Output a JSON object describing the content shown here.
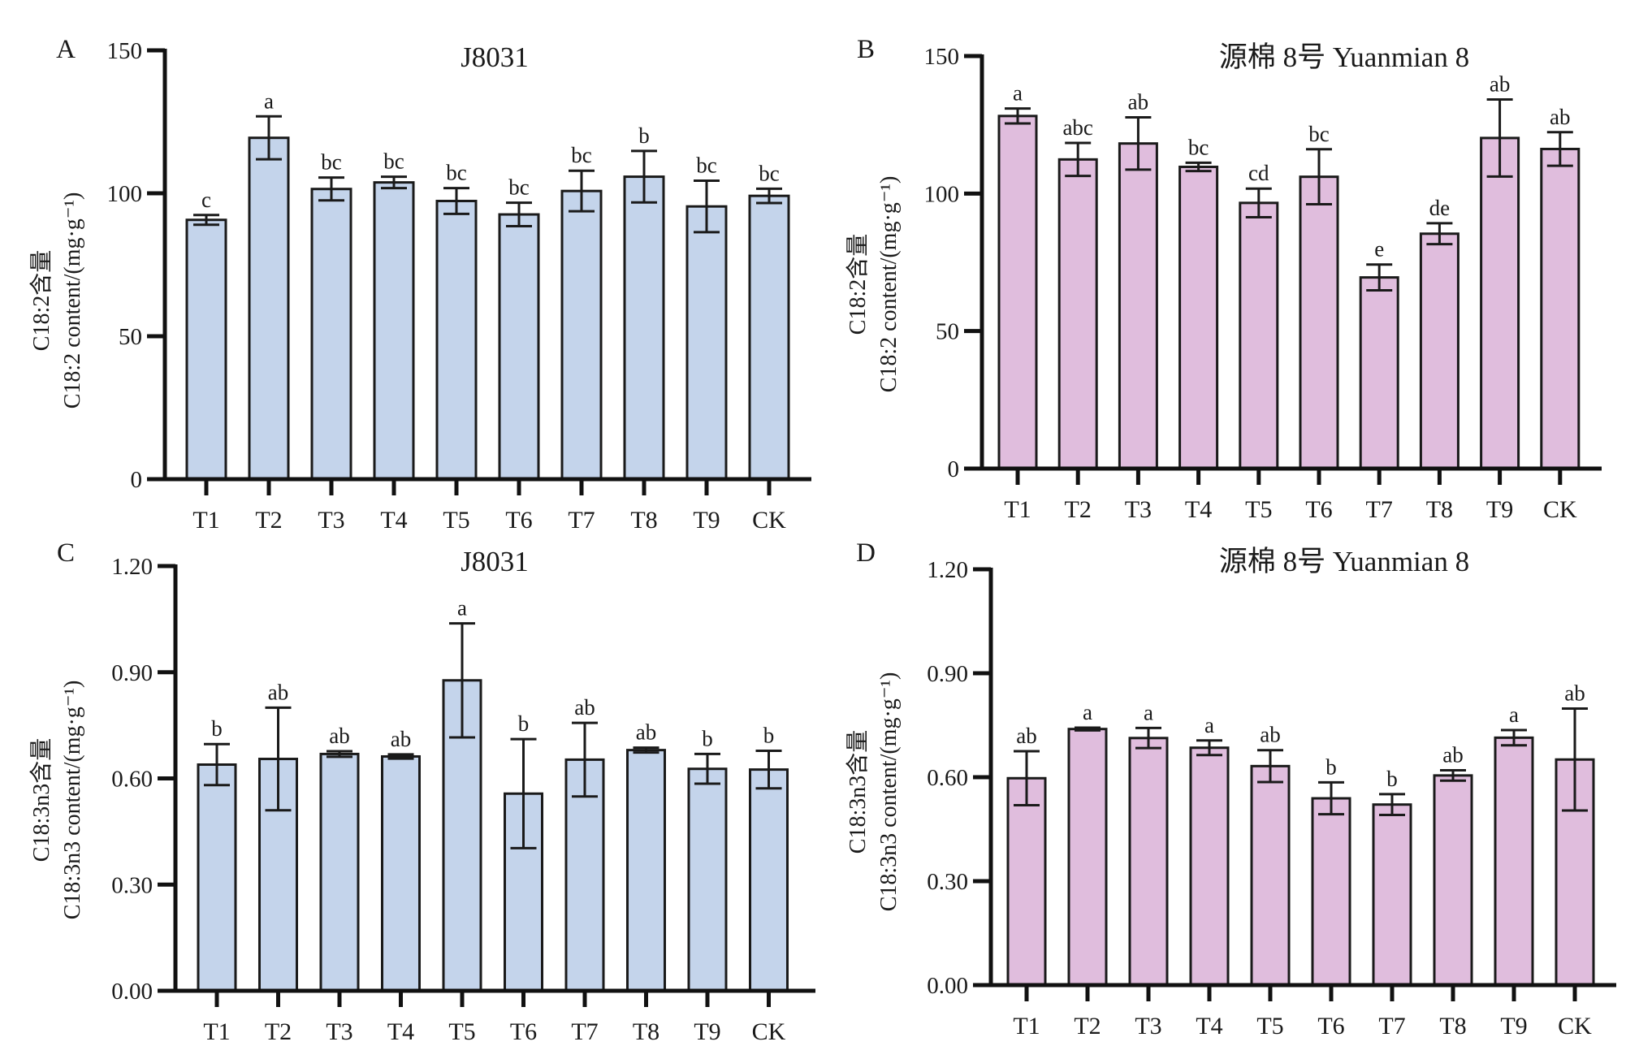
{
  "chart_data": [
    {
      "panel": "A",
      "type": "bar",
      "title": "J8031",
      "ylabel_cn": "C18:2含量",
      "ylabel_en": "C18:2 content/(mg·g⁻¹)",
      "xlabel": "",
      "categories": [
        "T1",
        "T2",
        "T3",
        "T4",
        "T5",
        "T6",
        "T7",
        "T8",
        "T9",
        "CK"
      ],
      "values": [
        90.7,
        119.4,
        101.5,
        103.8,
        97.3,
        92.6,
        100.8,
        105.8,
        95.4,
        99.1
      ],
      "error": [
        1.7,
        7.5,
        4.0,
        2.0,
        4.5,
        4.1,
        7.1,
        9.0,
        9.0,
        2.5
      ],
      "significance": [
        "c",
        "a",
        "bc",
        "bc",
        "bc",
        "bc",
        "bc",
        "b",
        "bc",
        "bc"
      ],
      "ylim": [
        0,
        150
      ],
      "yticks": [
        0,
        50,
        100,
        150
      ],
      "ytick_labels": [
        "0",
        "50",
        "100",
        "150"
      ],
      "bar_color": "#c4d4eb",
      "grid": false
    },
    {
      "panel": "B",
      "type": "bar",
      "title": "源棉 8号 Yuanmian 8",
      "ylabel_cn": "C18:2含量",
      "ylabel_en": "C18:2 content/(mg·g⁻¹)",
      "xlabel": "",
      "categories": [
        "T1",
        "T2",
        "T3",
        "T4",
        "T5",
        "T6",
        "T7",
        "T8",
        "T9",
        "CK"
      ],
      "values": [
        128.2,
        112.4,
        118.2,
        109.7,
        96.6,
        106.1,
        69.5,
        85.4,
        120.2,
        116.2
      ],
      "error": [
        2.7,
        6.0,
        9.5,
        1.5,
        5.2,
        10.0,
        4.7,
        3.8,
        14.0,
        6.1
      ],
      "significance": [
        "a",
        "abc",
        "ab",
        "bc",
        "cd",
        "bc",
        "e",
        "de",
        "ab",
        "ab"
      ],
      "ylim": [
        0,
        150
      ],
      "yticks": [
        0,
        50,
        100,
        150
      ],
      "ytick_labels": [
        "0",
        "50",
        "100",
        "150"
      ],
      "bar_color": "#e0bddd",
      "grid": false
    },
    {
      "panel": "C",
      "type": "bar",
      "title": "J8031",
      "ylabel_cn": "C18:3n3含量",
      "ylabel_en": "C18:3n3 content/(mg·g⁻¹)",
      "xlabel": "",
      "categories": [
        "T1",
        "T2",
        "T3",
        "T4",
        "T5",
        "T6",
        "T7",
        "T8",
        "T9",
        "CK"
      ],
      "values": [
        0.639,
        0.655,
        0.669,
        0.662,
        0.877,
        0.557,
        0.653,
        0.68,
        0.627,
        0.625
      ],
      "error": [
        0.058,
        0.145,
        0.008,
        0.006,
        0.161,
        0.154,
        0.104,
        0.007,
        0.042,
        0.053
      ],
      "significance": [
        "b",
        "ab",
        "ab",
        "ab",
        "a",
        "b",
        "ab",
        "ab",
        "b",
        "b"
      ],
      "ylim": [
        0,
        1.2
      ],
      "yticks": [
        0,
        0.3,
        0.6,
        0.9,
        1.2
      ],
      "ytick_labels": [
        "0.00",
        "0.30",
        "0.60",
        "0.90",
        "1.20"
      ],
      "bar_color": "#c4d4eb",
      "grid": false
    },
    {
      "panel": "D",
      "type": "bar",
      "title": "源棉 8号 Yuanmian 8",
      "ylabel_cn": "C18:3n3含量",
      "ylabel_en": "C18:3n3 content/(mg·g⁻¹)",
      "xlabel": "",
      "categories": [
        "T1",
        "T2",
        "T3",
        "T4",
        "T5",
        "T6",
        "T7",
        "T8",
        "T9",
        "CK"
      ],
      "values": [
        0.597,
        0.739,
        0.713,
        0.685,
        0.632,
        0.539,
        0.521,
        0.605,
        0.714,
        0.651
      ],
      "error": [
        0.078,
        0.004,
        0.029,
        0.021,
        0.046,
        0.046,
        0.03,
        0.015,
        0.022,
        0.147
      ],
      "significance": [
        "ab",
        "a",
        "a",
        "a",
        "ab",
        "b",
        "b",
        "ab",
        "a",
        "ab"
      ],
      "ylim": [
        0,
        1.2
      ],
      "yticks": [
        0,
        0.3,
        0.6,
        0.9,
        1.2
      ],
      "ytick_labels": [
        "0.00",
        "0.30",
        "0.60",
        "0.90",
        "1.20"
      ],
      "bar_color": "#e0bddd",
      "grid": false
    }
  ]
}
